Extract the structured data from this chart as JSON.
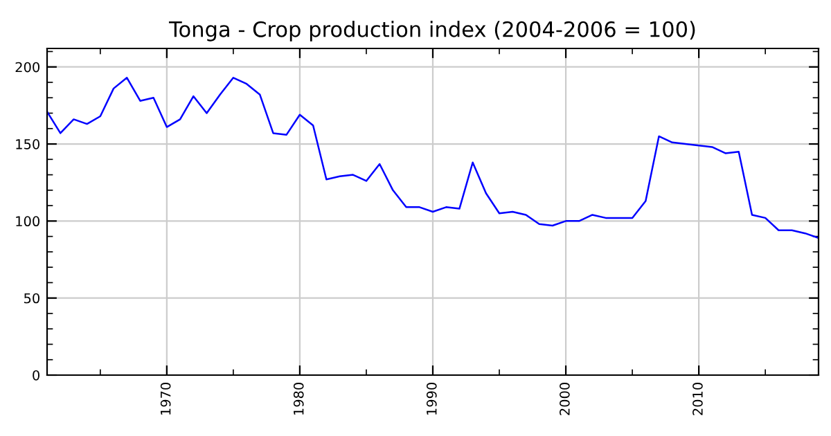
{
  "chart_data": {
    "type": "line",
    "title": "Tonga - Crop production index (2004-2006 = 100)",
    "x": [
      1961,
      1962,
      1963,
      1964,
      1965,
      1966,
      1967,
      1968,
      1969,
      1970,
      1971,
      1972,
      1973,
      1974,
      1975,
      1976,
      1977,
      1978,
      1979,
      1980,
      1981,
      1982,
      1983,
      1984,
      1985,
      1986,
      1987,
      1988,
      1989,
      1990,
      1991,
      1992,
      1993,
      1994,
      1995,
      1996,
      1997,
      1998,
      1999,
      2000,
      2001,
      2002,
      2003,
      2004,
      2005,
      2006,
      2007,
      2008,
      2009,
      2010,
      2011,
      2012,
      2013,
      2014,
      2015,
      2016,
      2017,
      2018,
      2019
    ],
    "series": [
      {
        "color": "#0000ff",
        "values": [
          171,
          157,
          166,
          163,
          168,
          186,
          193,
          178,
          180,
          161,
          166,
          181,
          170,
          182,
          193,
          189,
          182,
          157,
          156,
          169,
          162,
          127,
          129,
          130,
          126,
          137,
          120,
          109,
          109,
          106,
          109,
          108,
          138,
          118,
          105,
          106,
          104,
          98,
          97,
          100,
          100,
          104,
          102,
          102,
          102,
          113,
          155,
          151,
          150,
          149,
          148,
          144,
          145,
          104,
          102,
          94,
          94,
          92,
          89
        ]
      }
    ],
    "xlim": [
      1961,
      2019
    ],
    "xticks": [
      1970,
      1980,
      1990,
      2000,
      2010
    ],
    "ylim": [
      0,
      212
    ],
    "yticks": [
      0,
      50,
      100,
      150,
      200
    ],
    "grid": true,
    "marker": "none",
    "line_style": "solid"
  }
}
